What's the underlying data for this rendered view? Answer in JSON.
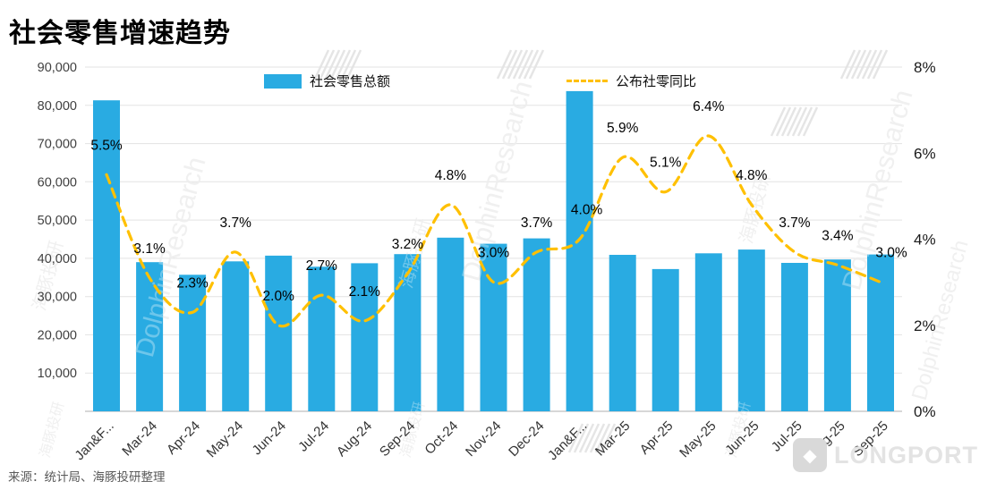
{
  "page": {
    "title": "社会零售增速趋势",
    "source": "来源：统计局、海豚投研整理"
  },
  "legend": {
    "bars": "社会零售总额",
    "line": "公布社零同比"
  },
  "watermark": {
    "cn": "海豚投研",
    "en": "DolphinResearch"
  },
  "logo": {
    "text": "LONGPORT",
    "icon_glyph": "◆"
  },
  "colors": {
    "bar": "#29ABE2",
    "line": "#FFC000",
    "grid": "#E3E3E3",
    "axis_line": "#BFBFBF",
    "axis_text": "#404040",
    "label_text": "#000000",
    "source_text": "#595959"
  },
  "chart_data": {
    "type": "bar+line combo",
    "title": "社会零售增速趋势",
    "legend_position": "top",
    "grid": true,
    "categories": [
      "Jan&F...",
      "Mar-24",
      "Apr-24",
      "May-24",
      "Jun-24",
      "Jul-24",
      "Aug-24",
      "Sep-24",
      "Oct-24",
      "Nov-24",
      "Dec-24",
      "Jan&F...",
      "Mar-25",
      "Apr-25",
      "May-25",
      "Jun-25",
      "Jul-25",
      "Aug-25",
      "Sep-25"
    ],
    "series": [
      {
        "name": "社会零售总额",
        "type": "bar",
        "axis": "left",
        "values": [
          81300,
          39000,
          35700,
          39200,
          40700,
          37800,
          38700,
          41100,
          45400,
          43800,
          45200,
          83700,
          40900,
          37200,
          41300,
          42300,
          38800,
          39700,
          41000
        ]
      },
      {
        "name": "公布社零同比",
        "type": "line",
        "style": "dashed",
        "axis": "right",
        "values": [
          5.5,
          3.1,
          2.3,
          3.7,
          2.0,
          2.7,
          2.1,
          3.2,
          4.8,
          3.0,
          3.7,
          4.0,
          5.9,
          5.1,
          6.4,
          4.8,
          3.7,
          3.4,
          3.0
        ],
        "labels": [
          "5.5%",
          "3.1%",
          "2.3%",
          "3.7%",
          "2.0%",
          "2.7%",
          "2.1%",
          "3.2%",
          "4.8%",
          "3.0%",
          "3.7%",
          "4.0%",
          "5.9%",
          "5.1%",
          "6.4%",
          "4.8%",
          "3.7%",
          "3.4%",
          "3.0%"
        ]
      }
    ],
    "left_axis": {
      "min": 0,
      "max": 90000,
      "tick_values": [
        90000,
        80000,
        70000,
        60000,
        50000,
        40000,
        30000,
        20000,
        10000
      ],
      "tick_labels": [
        "90,000",
        "80,000",
        "70,000",
        "60,000",
        "50,000",
        "40,000",
        "30,000",
        "20,000",
        "10,000"
      ]
    },
    "right_axis": {
      "min": 0,
      "max": 8,
      "tick_values": [
        8,
        6,
        4,
        2,
        0
      ],
      "tick_labels": [
        "8%",
        "6%",
        "4%",
        "2%",
        "0%"
      ]
    }
  }
}
